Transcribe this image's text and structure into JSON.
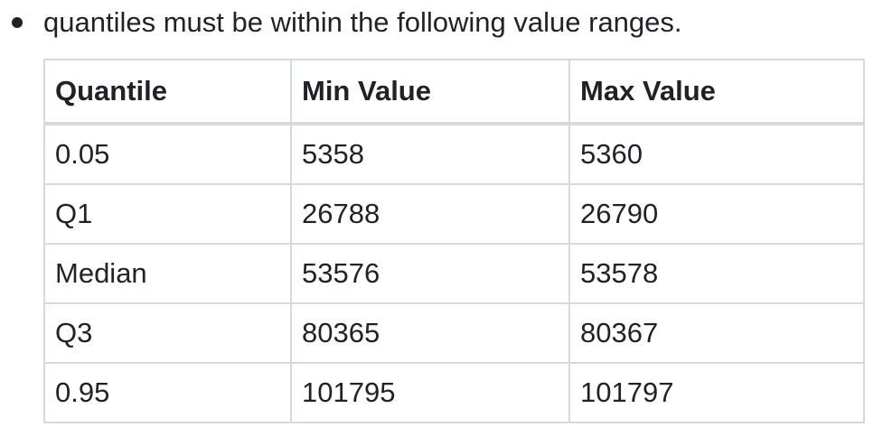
{
  "bullet": {
    "text": "quantiles must be within the following value ranges."
  },
  "table": {
    "headers": [
      "Quantile",
      "Min Value",
      "Max Value"
    ],
    "rows": [
      [
        "0.05",
        "5358",
        "5360"
      ],
      [
        "Q1",
        "26788",
        "26790"
      ],
      [
        "Median",
        "53576",
        "53578"
      ],
      [
        "Q3",
        "80365",
        "80367"
      ],
      [
        "0.95",
        "101795",
        "101797"
      ]
    ]
  }
}
